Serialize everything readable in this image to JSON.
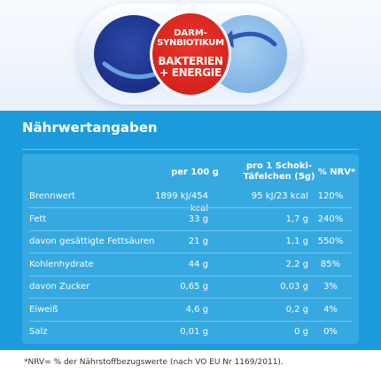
{
  "badge": {
    "line1": "DARM-",
    "line2": "SYNBIOTIKUM",
    "line3": "BAKTERIEN",
    "line4": "+ ENERGIE"
  },
  "title": "Nährwertangaben",
  "headers": {
    "col1": "per 100 g",
    "col2_line1": "pro 1 Schoki-",
    "col2_line2": "Täfelchen (5g)",
    "col3": "% NRV*"
  },
  "rows": [
    {
      "label": "Brennwert",
      "per100": "1899 kJ/454 kcal",
      "perPiece": "95 kJ/23 kcal",
      "nrv": "120%"
    },
    {
      "label": "Fett",
      "per100": "33 g",
      "perPiece": "1,7 g",
      "nrv": "240%"
    },
    {
      "label": "davon gesättigte Fettsäuren",
      "per100": "21 g",
      "perPiece": "1,1 g",
      "nrv": "550%"
    },
    {
      "label": "Kohlenhydrate",
      "per100": "44 g",
      "perPiece": "2,2 g",
      "nrv": "85%"
    },
    {
      "label": "davon Zucker",
      "per100": "0,65 g",
      "perPiece": "0,03 g",
      "nrv": "3%"
    },
    {
      "label": "Eiweiß",
      "per100": "4,6 g",
      "perPiece": "0,2 g",
      "nrv": "4%"
    },
    {
      "label": "Salz",
      "per100": "0,01 g",
      "perPiece": "0 g",
      "nrv": "0%"
    }
  ],
  "footnote": "*NRV= % der Nährstoffbezugswerte (nach VO EU Nr 1169/2011).",
  "colors": {
    "panel": "#1b9bdc",
    "table": "#36a9e1",
    "badge": "#d5231c",
    "capsule_dark": "#1a2f86",
    "capsule_light": "#7fb3e6"
  }
}
